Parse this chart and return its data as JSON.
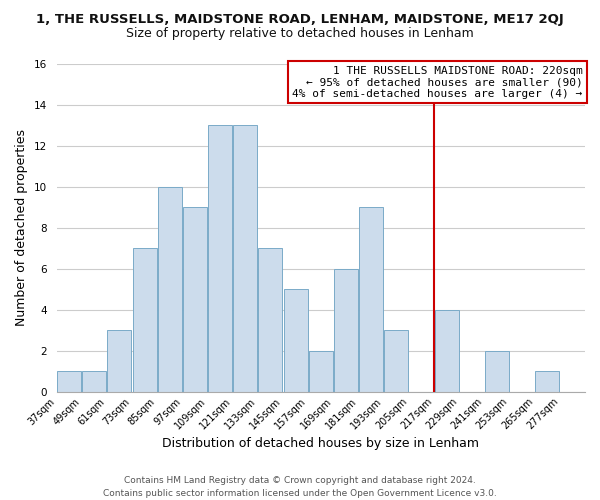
{
  "title": "1, THE RUSSELLS, MAIDSTONE ROAD, LENHAM, MAIDSTONE, ME17 2QJ",
  "subtitle": "Size of property relative to detached houses in Lenham",
  "xlabel": "Distribution of detached houses by size in Lenham",
  "ylabel": "Number of detached properties",
  "bins": [
    37,
    49,
    61,
    73,
    85,
    97,
    109,
    121,
    133,
    145,
    157,
    169,
    181,
    193,
    205,
    217,
    229,
    241,
    253,
    265,
    277
  ],
  "counts": [
    1,
    1,
    3,
    7,
    10,
    9,
    13,
    13,
    7,
    5,
    2,
    6,
    9,
    3,
    0,
    4,
    0,
    2,
    0,
    1
  ],
  "bar_color": "#ccdcec",
  "bar_edge_color": "#7aaac8",
  "vline_x": 217,
  "vline_color": "#cc0000",
  "ylim": [
    0,
    16
  ],
  "yticks": [
    0,
    2,
    4,
    6,
    8,
    10,
    12,
    14,
    16
  ],
  "legend_text_line1": "1 THE RUSSELLS MAIDSTONE ROAD: 220sqm",
  "legend_text_line2": "← 95% of detached houses are smaller (90)",
  "legend_text_line3": "4% of semi-detached houses are larger (4) →",
  "legend_box_color": "white",
  "legend_box_edge_color": "#cc0000",
  "footer_line1": "Contains HM Land Registry data © Crown copyright and database right 2024.",
  "footer_line2": "Contains public sector information licensed under the Open Government Licence v3.0.",
  "tick_labels": [
    "37sqm",
    "49sqm",
    "61sqm",
    "73sqm",
    "85sqm",
    "97sqm",
    "109sqm",
    "121sqm",
    "133sqm",
    "145sqm",
    "157sqm",
    "169sqm",
    "181sqm",
    "193sqm",
    "205sqm",
    "217sqm",
    "229sqm",
    "241sqm",
    "253sqm",
    "265sqm",
    "277sqm"
  ],
  "background_color": "#ffffff",
  "grid_color": "#cccccc",
  "title_fontsize": 9.5,
  "subtitle_fontsize": 9.0,
  "xlabel_fontsize": 9.0,
  "ylabel_fontsize": 9.0,
  "tick_fontsize": 7.0,
  "legend_fontsize": 8.0,
  "footer_fontsize": 6.5
}
